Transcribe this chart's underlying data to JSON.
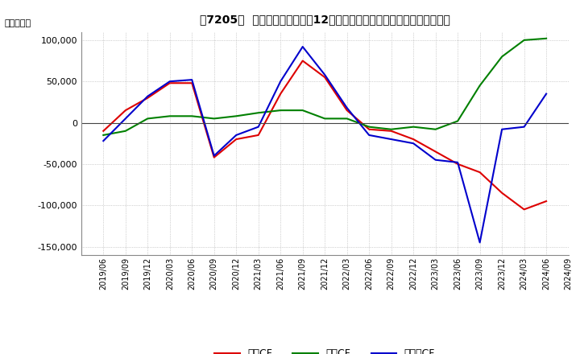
{
  "title": "［7205］  キャッシュフローの12か月移動合計の対前年同期増減額の推移",
  "ylabel": "（百万円）",
  "ylim": [
    -160000,
    110000
  ],
  "yticks": [
    -150000,
    -100000,
    -50000,
    0,
    50000,
    100000
  ],
  "line_colors": {
    "営業CF": "#dd0000",
    "投資CF": "#008000",
    "フリーCF": "#0000cc"
  },
  "x_labels": [
    "2019/06",
    "2019/09",
    "2019/12",
    "2020/03",
    "2020/06",
    "2020/09",
    "2020/12",
    "2021/03",
    "2021/06",
    "2021/09",
    "2021/12",
    "2022/03",
    "2022/06",
    "2022/09",
    "2022/12",
    "2023/03",
    "2023/06",
    "2023/09",
    "2023/12",
    "2024/03",
    "2024/06",
    "2024/09"
  ],
  "営業CF": [
    -10000,
    15000,
    30000,
    48000,
    48000,
    -42000,
    -20000,
    -15000,
    35000,
    75000,
    55000,
    15000,
    -8000,
    -10000,
    -20000,
    -35000,
    -50000,
    -60000,
    -85000,
    -105000,
    -95000,
    null
  ],
  "投資CF": [
    -15000,
    -10000,
    5000,
    8000,
    8000,
    5000,
    8000,
    12000,
    15000,
    15000,
    5000,
    5000,
    -5000,
    -8000,
    -5000,
    -8000,
    2000,
    45000,
    80000,
    100000,
    102000,
    null
  ],
  "フリーCF": [
    -22000,
    5000,
    32000,
    50000,
    52000,
    -40000,
    -15000,
    -5000,
    50000,
    92000,
    58000,
    18000,
    -15000,
    -20000,
    -25000,
    -45000,
    -48000,
    -145000,
    -8000,
    -5000,
    35000,
    null
  ],
  "background_color": "#ffffff",
  "grid_color": "#aaaaaa"
}
